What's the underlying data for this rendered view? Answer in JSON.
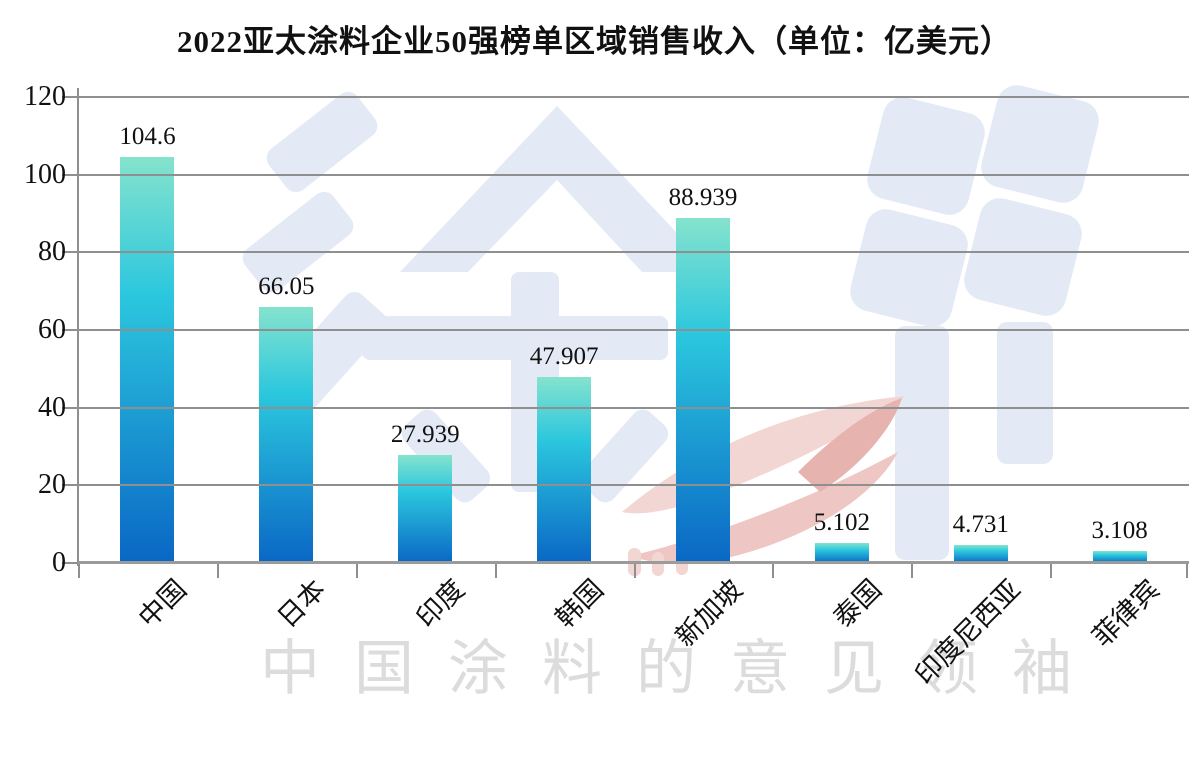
{
  "chart_data": {
    "type": "bar",
    "title": "2022亚太涂料企业50强榜单区域销售收入（单位：亿美元）",
    "categories": [
      "中国",
      "日本",
      "印度",
      "韩国",
      "新加坡",
      "泰国",
      "印度尼西亚",
      "菲律宾"
    ],
    "values": [
      104.6,
      66.05,
      27.939,
      47.907,
      88.939,
      5.102,
      4.731,
      3.108
    ],
    "value_labels": [
      "104.6",
      "66.05",
      "27.939",
      "47.907",
      "88.939",
      "5.102",
      "4.731",
      "3.108"
    ],
    "xlabel": "",
    "ylabel": "",
    "ylim": [
      0,
      120
    ],
    "yticks": [
      0,
      20,
      40,
      60,
      80,
      100,
      120
    ],
    "grid": "horizontal gridlines drawn above bars",
    "legend": "none",
    "bar_gradient": {
      "top": "#85E3CD",
      "middle": "#2BC7DE",
      "bottom": "#0A67C5"
    },
    "axis_color": "#8F8F8F",
    "baseline_color": "#9B9B9B",
    "label_color": "#111111"
  },
  "watermark": {
    "logo_text": "涂界",
    "logo_color": "#E3EAF5",
    "accent_color": "#F2D6D3",
    "accent_deep_color": "#E7B3AF",
    "tagline": "中国涂料的意见领袖",
    "tagline_color": "#DCDCDC"
  }
}
